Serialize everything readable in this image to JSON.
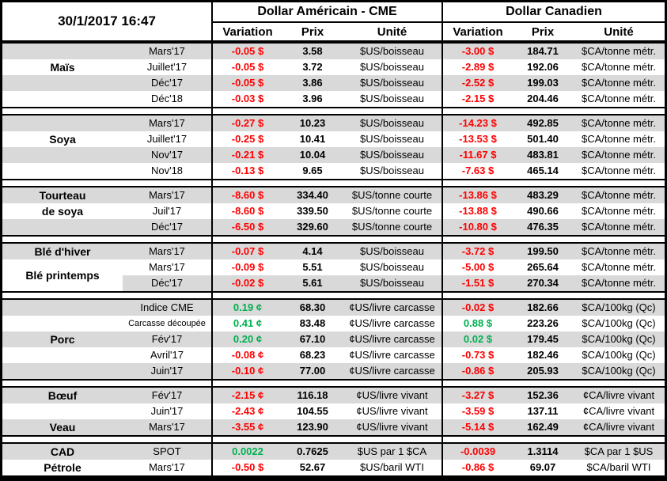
{
  "meta": {
    "datetime": "30/1/2017 16:47"
  },
  "header": {
    "us_group": "Dollar Américain - CME",
    "ca_group": "Dollar Canadien",
    "col_variation": "Variation",
    "col_prix": "Prix",
    "col_unite": "Unité"
  },
  "colors": {
    "negative": "#FF0000",
    "positive": "#00B050",
    "stripe": "#D9D9D9"
  },
  "sections": [
    {
      "name": "mais",
      "rows": [
        {
          "label": "",
          "month": "Mars'17",
          "us_var": "-0.05 $",
          "us_dir": "neg",
          "us_prix": "3.58",
          "us_unit": "$US/boisseau",
          "ca_var": "-3.00 $",
          "ca_dir": "neg",
          "ca_prix": "184.71",
          "ca_unit": "$CA/tonne métr."
        },
        {
          "label": "Maïs",
          "month": "Juillet'17",
          "us_var": "-0.05 $",
          "us_dir": "neg",
          "us_prix": "3.72",
          "us_unit": "$US/boisseau",
          "ca_var": "-2.89 $",
          "ca_dir": "neg",
          "ca_prix": "192.06",
          "ca_unit": "$CA/tonne métr."
        },
        {
          "label": "",
          "month": "Déc'17",
          "us_var": "-0.05 $",
          "us_dir": "neg",
          "us_prix": "3.86",
          "us_unit": "$US/boisseau",
          "ca_var": "-2.52 $",
          "ca_dir": "neg",
          "ca_prix": "199.03",
          "ca_unit": "$CA/tonne métr."
        },
        {
          "label": "",
          "month": "Déc'18",
          "us_var": "-0.03 $",
          "us_dir": "neg",
          "us_prix": "3.96",
          "us_unit": "$US/boisseau",
          "ca_var": "-2.15 $",
          "ca_dir": "neg",
          "ca_prix": "204.46",
          "ca_unit": "$CA/tonne métr."
        }
      ]
    },
    {
      "name": "soya",
      "rows": [
        {
          "label": "",
          "month": "Mars'17",
          "us_var": "-0.27 $",
          "us_dir": "neg",
          "us_prix": "10.23",
          "us_unit": "$US/boisseau",
          "ca_var": "-14.23 $",
          "ca_dir": "neg",
          "ca_prix": "492.85",
          "ca_unit": "$CA/tonne métr."
        },
        {
          "label": "Soya",
          "month": "Juillet'17",
          "us_var": "-0.25 $",
          "us_dir": "neg",
          "us_prix": "10.41",
          "us_unit": "$US/boisseau",
          "ca_var": "-13.53 $",
          "ca_dir": "neg",
          "ca_prix": "501.40",
          "ca_unit": "$CA/tonne métr."
        },
        {
          "label": "",
          "month": "Nov'17",
          "us_var": "-0.21 $",
          "us_dir": "neg",
          "us_prix": "10.04",
          "us_unit": "$US/boisseau",
          "ca_var": "-11.67 $",
          "ca_dir": "neg",
          "ca_prix": "483.81",
          "ca_unit": "$CA/tonne métr."
        },
        {
          "label": "",
          "month": "Nov'18",
          "us_var": "-0.13 $",
          "us_dir": "neg",
          "us_prix": "9.65",
          "us_unit": "$US/boisseau",
          "ca_var": "-7.63 $",
          "ca_dir": "neg",
          "ca_prix": "465.14",
          "ca_unit": "$CA/tonne métr."
        }
      ]
    },
    {
      "name": "tourteau-de-soya",
      "rows": [
        {
          "label": "Tourteau",
          "month": "Mars'17",
          "us_var": "-8.60 $",
          "us_dir": "neg",
          "us_prix": "334.40",
          "us_unit": "$US/tonne courte",
          "ca_var": "-13.86 $",
          "ca_dir": "neg",
          "ca_prix": "483.29",
          "ca_unit": "$CA/tonne métr."
        },
        {
          "label": "de soya",
          "month": "Juil'17",
          "us_var": "-8.60 $",
          "us_dir": "neg",
          "us_prix": "339.50",
          "us_unit": "$US/tonne courte",
          "ca_var": "-13.88 $",
          "ca_dir": "neg",
          "ca_prix": "490.66",
          "ca_unit": "$CA/tonne métr."
        },
        {
          "label": "",
          "month": "Déc'17",
          "us_var": "-6.50 $",
          "us_dir": "neg",
          "us_prix": "329.60",
          "us_unit": "$US/tonne courte",
          "ca_var": "-10.80 $",
          "ca_dir": "neg",
          "ca_prix": "476.35",
          "ca_unit": "$CA/tonne métr."
        }
      ]
    },
    {
      "name": "ble",
      "span_label": {
        "text": "Blé printemps",
        "start_row": 1,
        "num_rows": 2
      },
      "rows": [
        {
          "label": "Blé d'hiver",
          "month": "Mars'17",
          "us_var": "-0.07 $",
          "us_dir": "neg",
          "us_prix": "4.14",
          "us_unit": "$US/boisseau",
          "ca_var": "-3.72 $",
          "ca_dir": "neg",
          "ca_prix": "199.50",
          "ca_unit": "$CA/tonne métr."
        },
        {
          "label": "",
          "month": "Mars'17",
          "us_var": "-0.09 $",
          "us_dir": "neg",
          "us_prix": "5.51",
          "us_unit": "$US/boisseau",
          "ca_var": "-5.00 $",
          "ca_dir": "neg",
          "ca_prix": "265.64",
          "ca_unit": "$CA/tonne métr."
        },
        {
          "label": "",
          "month": "Déc'17",
          "us_var": "-0.02 $",
          "us_dir": "neg",
          "us_prix": "5.61",
          "us_unit": "$US/boisseau",
          "ca_var": "-1.51 $",
          "ca_dir": "neg",
          "ca_prix": "270.34",
          "ca_unit": "$CA/tonne métr."
        }
      ]
    },
    {
      "name": "porc",
      "rows": [
        {
          "label": "",
          "month": "Indice CME",
          "us_var": "0.19 ¢",
          "us_dir": "pos",
          "us_prix": "68.30",
          "us_unit": "¢US/livre carcasse",
          "ca_var": "-0.02 $",
          "ca_dir": "neg",
          "ca_prix": "182.66",
          "ca_unit": "$CA/100kg (Qc)"
        },
        {
          "label": "",
          "month": "Carcasse découpée",
          "small": true,
          "us_var": "0.41 ¢",
          "us_dir": "pos",
          "us_prix": "83.48",
          "us_unit": "¢US/livre carcasse",
          "ca_var": "0.88 $",
          "ca_dir": "pos",
          "ca_prix": "223.26",
          "ca_unit": "$CA/100kg (Qc)"
        },
        {
          "label": "Porc",
          "month": "Fév'17",
          "us_var": "0.20 ¢",
          "us_dir": "pos",
          "us_prix": "67.10",
          "us_unit": "¢US/livre carcasse",
          "ca_var": "0.02 $",
          "ca_dir": "pos",
          "ca_prix": "179.45",
          "ca_unit": "$CA/100kg (Qc)"
        },
        {
          "label": "",
          "month": "Avril'17",
          "us_var": "-0.08 ¢",
          "us_dir": "neg",
          "us_prix": "68.23",
          "us_unit": "¢US/livre carcasse",
          "ca_var": "-0.73 $",
          "ca_dir": "neg",
          "ca_prix": "182.46",
          "ca_unit": "$CA/100kg (Qc)"
        },
        {
          "label": "",
          "month": "Juin'17",
          "us_var": "-0.10 ¢",
          "us_dir": "neg",
          "us_prix": "77.00",
          "us_unit": "¢US/livre carcasse",
          "ca_var": "-0.86 $",
          "ca_dir": "neg",
          "ca_prix": "205.93",
          "ca_unit": "$CA/100kg (Qc)"
        }
      ]
    },
    {
      "name": "boeuf-veau",
      "rows": [
        {
          "label": "Bœuf",
          "month": "Fév'17",
          "us_var": "-2.15 ¢",
          "us_dir": "neg",
          "us_prix": "116.18",
          "us_unit": "¢US/livre vivant",
          "ca_var": "-3.27 $",
          "ca_dir": "neg",
          "ca_prix": "152.36",
          "ca_unit": "¢CA/livre vivant"
        },
        {
          "label": "",
          "month": "Juin'17",
          "us_var": "-2.43 ¢",
          "us_dir": "neg",
          "us_prix": "104.55",
          "us_unit": "¢US/livre vivant",
          "ca_var": "-3.59 $",
          "ca_dir": "neg",
          "ca_prix": "137.11",
          "ca_unit": "¢CA/livre vivant"
        },
        {
          "label": "Veau",
          "month": "Mars'17",
          "us_var": "-3.55 ¢",
          "us_dir": "neg",
          "us_prix": "123.90",
          "us_unit": "¢US/livre vivant",
          "ca_var": "-5.14 $",
          "ca_dir": "neg",
          "ca_prix": "162.49",
          "ca_unit": "¢CA/livre vivant"
        }
      ]
    },
    {
      "name": "cad-petrole",
      "rows": [
        {
          "label": "CAD",
          "month": "SPOT",
          "us_var": "0.0022",
          "us_dir": "pos",
          "us_prix": "0.7625",
          "us_unit": "$US par 1 $CA",
          "ca_var": "-0.0039",
          "ca_dir": "neg",
          "ca_prix": "1.3114",
          "ca_unit": "$CA par 1 $US"
        },
        {
          "label": "Pétrole",
          "month": "Mars'17",
          "us_var": "-0.50 $",
          "us_dir": "neg",
          "us_prix": "52.67",
          "us_unit": "$US/baril WTI",
          "ca_var": "-0.86 $",
          "ca_dir": "neg",
          "ca_prix": "69.07",
          "ca_unit": "$CA/baril WTI"
        }
      ]
    }
  ]
}
